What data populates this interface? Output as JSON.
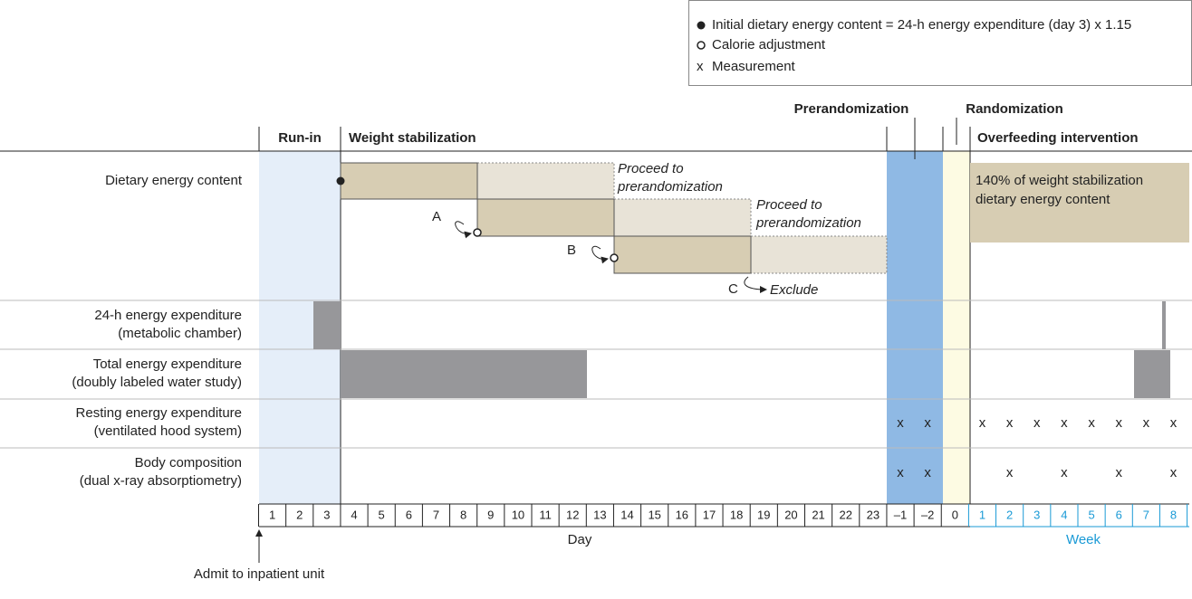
{
  "legend": {
    "items": [
      "Initial dietary energy content = 24-h energy expenditure (day 3) x 1.15",
      "Calorie adjustment",
      "Measurement"
    ]
  },
  "header": {
    "prerandomization": "Prerandomization",
    "randomization": "Randomization",
    "run_in": "Run-in",
    "weight_stabilization": "Weight stabilization",
    "overfeeding": "Overfeeding intervention"
  },
  "rows": [
    {
      "lines": [
        "Dietary energy content"
      ]
    },
    {
      "lines": [
        "24-h energy expenditure",
        "(metabolic chamber)"
      ]
    },
    {
      "lines": [
        "Total energy expenditure",
        "(doubly labeled water study)"
      ]
    },
    {
      "lines": [
        "Resting energy expenditure",
        "(ventilated hood system)"
      ]
    },
    {
      "lines": [
        "Body composition",
        "(dual x-ray absorptiometry)"
      ]
    }
  ],
  "diet": {
    "proceed": [
      "Proceed to",
      "prerandomization"
    ],
    "steps": [
      "A",
      "B",
      "C"
    ],
    "exclude": "Exclude",
    "overfeeding_box": [
      "140% of weight stabilization",
      "dietary energy content"
    ]
  },
  "measurement_symbol": "x",
  "axis": {
    "days": [
      "1",
      "2",
      "3",
      "4",
      "5",
      "6",
      "7",
      "8",
      "9",
      "10",
      "11",
      "12",
      "13",
      "14",
      "15",
      "16",
      "17",
      "18",
      "19",
      "20",
      "21",
      "22",
      "23",
      "–1",
      "–2",
      "0"
    ],
    "weeks": [
      "1",
      "2",
      "3",
      "4",
      "5",
      "6",
      "7",
      "8"
    ],
    "day_label": "Day",
    "week_label": "Week"
  },
  "footer": {
    "admit": "Admit to inpatient unit"
  }
}
